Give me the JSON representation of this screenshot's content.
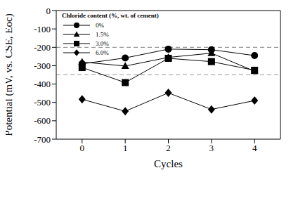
{
  "chart_data": {
    "type": "line",
    "x_label": "Cycles",
    "y_label": "Potential (mV, vs. CSE, Eoc)",
    "x": [
      0,
      1,
      2,
      3,
      4
    ],
    "xlim": [
      -0.6,
      4.6
    ],
    "xticks": [
      0,
      1,
      2,
      3,
      4
    ],
    "ylim": [
      -700,
      0
    ],
    "yticks": [
      -700,
      -600,
      -500,
      -400,
      -300,
      -200,
      -100,
      0
    ],
    "grid": false,
    "legend": "upper left",
    "legend_title": "Chloride content (%, wt. of cement)",
    "reference_lines": [
      -200,
      -350
    ],
    "series": [
      {
        "name": "0%",
        "color": "#000000",
        "marker": "circle",
        "line_style": "solid",
        "values": [
          -290,
          -258,
          -210,
          -213,
          -245
        ]
      },
      {
        "name": "1.5%",
        "color": "#000000",
        "marker": "triangle",
        "line_style": "solid",
        "values": [
          -280,
          -302,
          -255,
          -232,
          -330
        ]
      },
      {
        "name": "3.0%",
        "color": "#000000",
        "marker": "square",
        "line_style": "solid",
        "values": [
          -310,
          -392,
          -260,
          -278,
          -325
        ]
      },
      {
        "name": "6.0%",
        "color": "#000000",
        "marker": "diamond",
        "line_style": "solid",
        "values": [
          -483,
          -548,
          -448,
          -538,
          -490
        ]
      }
    ]
  }
}
